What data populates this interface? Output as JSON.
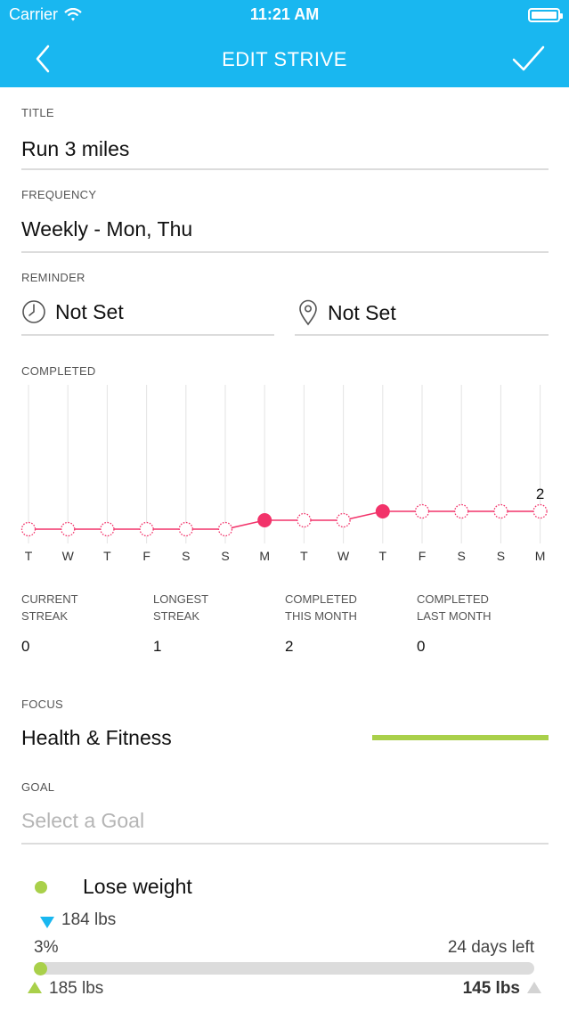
{
  "status_bar": {
    "carrier": "Carrier",
    "time": "11:21 AM"
  },
  "nav": {
    "title": "EDIT STRIVE",
    "back_icon": "chevron-left-icon",
    "confirm_icon": "checkmark-icon"
  },
  "title_section": {
    "label": "TITLE",
    "value": "Run 3 miles"
  },
  "frequency_section": {
    "label": "FREQUENCY",
    "value": "Weekly - Mon, Thu"
  },
  "reminder_section": {
    "label": "REMINDER",
    "time_value": "Not Set",
    "location_value": "Not Set",
    "time_icon": "clock-icon",
    "location_icon": "location-pin-icon"
  },
  "completed_section": {
    "label": "COMPLETED"
  },
  "chart_data": {
    "type": "line",
    "categories": [
      "T",
      "W",
      "T",
      "F",
      "S",
      "S",
      "M",
      "T",
      "W",
      "T",
      "F",
      "S",
      "S",
      "M"
    ],
    "values": [
      0,
      0,
      0,
      0,
      0,
      0,
      1,
      1,
      1,
      2,
      2,
      2,
      2,
      2
    ],
    "completed_flags": [
      false,
      false,
      false,
      false,
      false,
      false,
      true,
      false,
      false,
      true,
      false,
      false,
      false,
      false
    ],
    "ylim": [
      0,
      2
    ],
    "last_value_label": "2",
    "color": "#f2336a"
  },
  "stats": [
    {
      "label_line1": "CURRENT",
      "label_line2": "STREAK",
      "value": "0"
    },
    {
      "label_line1": "LONGEST",
      "label_line2": "STREAK",
      "value": "1"
    },
    {
      "label_line1": "COMPLETED",
      "label_line2": "THIS MONTH",
      "value": "2"
    },
    {
      "label_line1": "COMPLETED",
      "label_line2": "LAST MONTH",
      "value": "0"
    }
  ],
  "focus_section": {
    "label": "FOCUS",
    "value": "Health & Fitness",
    "color": "#a9d04a"
  },
  "goal_section": {
    "label": "GOAL",
    "placeholder": "Select a Goal"
  },
  "goal_card": {
    "name": "Lose weight",
    "current": "184 lbs",
    "progress_label": "3%",
    "progress_fraction": 0.03,
    "days_left": "24 days left",
    "start": "185 lbs",
    "target": "145 lbs"
  }
}
